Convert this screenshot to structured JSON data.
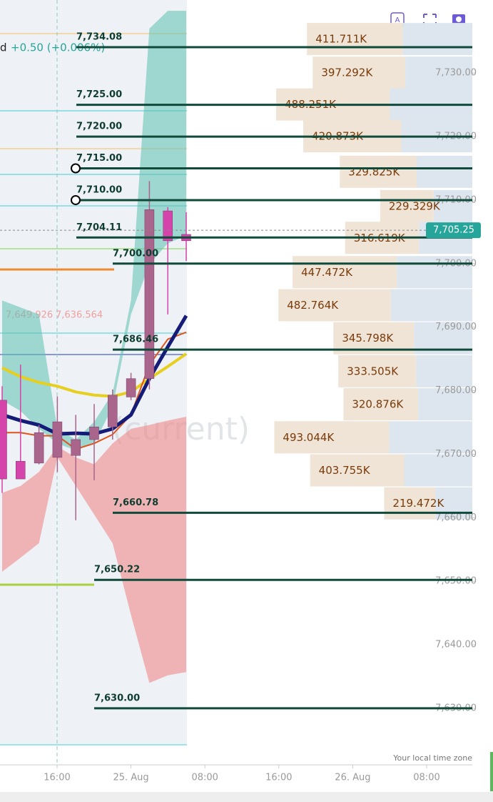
{
  "header": {
    "symbol_suffix": "d",
    "change": "+0.50 (+0.006%)"
  },
  "chart_data": {
    "type": "candlestick",
    "categories": [
      null,
      null,
      null,
      null,
      null,
      null,
      null,
      null,
      null,
      null,
      null
    ],
    "open": [
      7678.5,
      7668.9,
      7668.6,
      7669.5,
      7669.8,
      7672.3,
      7674.3,
      7679.0,
      7681.9,
      7708.3,
      7704.6
    ],
    "high": [
      7680.7,
      7684.1,
      7674.6,
      7679.1,
      7676.2,
      7677.9,
      7680.2,
      7682.8,
      7713.0,
      7708.9,
      7708.1
    ],
    "low": [
      7663.9,
      7666.1,
      7668.4,
      7667.2,
      7659.6,
      7665.9,
      7672.3,
      7678.5,
      7680.2,
      7692.0,
      7700.4
    ],
    "close": [
      7666.1,
      7666.1,
      7673.4,
      7675.1,
      7672.3,
      7674.3,
      7679.3,
      7681.9,
      7708.5,
      7703.6,
      7703.6
    ],
    "up_color": "#a9658c",
    "down_color": "#d444aa",
    "ylim": [
      7621.1,
      7741.5
    ],
    "yticks": [
      {
        "value": 7630,
        "label": "7,630.00"
      },
      {
        "value": 7640,
        "label": "7,640.00"
      },
      {
        "value": 7650,
        "label": "7,650.00"
      },
      {
        "value": 7660,
        "label": "7,660.00"
      },
      {
        "value": 7670,
        "label": "7,670.00"
      },
      {
        "value": 7680,
        "label": "7,680.00"
      },
      {
        "value": 7690,
        "label": "7,690.00"
      },
      {
        "value": 7700,
        "label": "7,700.00"
      },
      {
        "value": 7710,
        "label": "7,710.00"
      },
      {
        "value": 7720,
        "label": "7,720.00"
      },
      {
        "value": 7730,
        "label": "7,730.00"
      }
    ],
    "xticks": [
      "16:00",
      "25. Aug",
      "08:00",
      "16:00",
      "26. Aug",
      "08:00"
    ],
    "bands": [
      {
        "color": "#5cbfb0",
        "upper": [
          7694.2,
          7693.1,
          7692.0,
          7674.0,
          7672.3,
          7675.1,
          7679.6,
          7694.2,
          7737.0,
          7739.8,
          7739.8
        ],
        "lower": [
          7678.5,
          7676.8,
          7674.0,
          7671.7,
          7670.6,
          7671.7,
          7677.4,
          7692.0,
          7699.9,
          7703.2,
          7704.4
        ]
      },
      {
        "color": "#f08080",
        "upper": [
          7663.9,
          7665.0,
          7667.2,
          7671.2,
          7669.5,
          7668.4,
          7671.7,
          7674.0,
          7674.6,
          7675.3,
          7675.9
        ],
        "lower": [
          7651.5,
          7653.7,
          7656.0,
          7669.5,
          7665.0,
          7660.5,
          7656.0,
          7644.7,
          7634.0,
          7635.2,
          7635.7
        ]
      }
    ],
    "lines": [
      {
        "color": "#e6cf1e",
        "width": 4,
        "values": [
          7683.6,
          7682.2,
          7681.3,
          7680.7,
          7679.8,
          7679.3,
          7679.1,
          7679.8,
          7681.9,
          7683.8,
          7685.8
        ]
      },
      {
        "color": "#e0541c",
        "width": 2,
        "values": [
          7673.4,
          7673.4,
          7672.9,
          7672.9,
          7670.8,
          7671.7,
          7673.1,
          7676.2,
          7684.1,
          7688.1,
          7689.2
        ]
      },
      {
        "color": "#141c78",
        "width": 5,
        "values": [
          7676.2,
          7675.3,
          7674.6,
          7673.2,
          7673.3,
          7673.2,
          7674.0,
          7676.2,
          7681.9,
          7686.9,
          7691.8
        ]
      }
    ],
    "levels": [
      {
        "value": 7734.08,
        "label": "7,734.08"
      },
      {
        "value": 7725,
        "label": "7,725.00"
      },
      {
        "value": 7720,
        "label": "7,720.00"
      },
      {
        "value": 7715,
        "label": "7,715.00"
      },
      {
        "value": 7710,
        "label": "7,710.00"
      },
      {
        "value": 7704.11,
        "label": "7,704.11"
      },
      {
        "value": 7700,
        "label": "7,700.00"
      },
      {
        "value": 7686.46,
        "label": "7,686.46"
      },
      {
        "value": 7660.78,
        "label": "7,660.78"
      },
      {
        "value": 7650.22,
        "label": "7,650.22"
      },
      {
        "value": 7630,
        "label": "7,630.00"
      }
    ],
    "last_price": {
      "value": 7705.25,
      "label": "7,705.25"
    },
    "indicator_labels": [
      "7,649.926",
      "7,636.564"
    ],
    "volume_profile": {
      "prices": [
        7735.3,
        7730.0,
        7725.0,
        7720.0,
        7714.4,
        7709.0,
        7704.0,
        7698.6,
        7693.4,
        7688.2,
        7683.0,
        7677.8,
        7672.6,
        7667.4,
        7662.2
      ],
      "values": [
        411711,
        397292,
        488251,
        420873,
        329825,
        229329,
        316619,
        447472,
        482764,
        345798,
        333505,
        320876,
        493044,
        403755,
        219472
      ],
      "value_labels": [
        "411.711K",
        "397.292K",
        "488.251K",
        "420.873K",
        "329.825K",
        "229.329K",
        "316.619K",
        "447.472K",
        "482.764K",
        "345.798K",
        "333.505K",
        "320.876K",
        "493.044K",
        "403.755K",
        "219.472K"
      ]
    },
    "watermark": "(current)",
    "timezone_note": "Your local time zone"
  }
}
